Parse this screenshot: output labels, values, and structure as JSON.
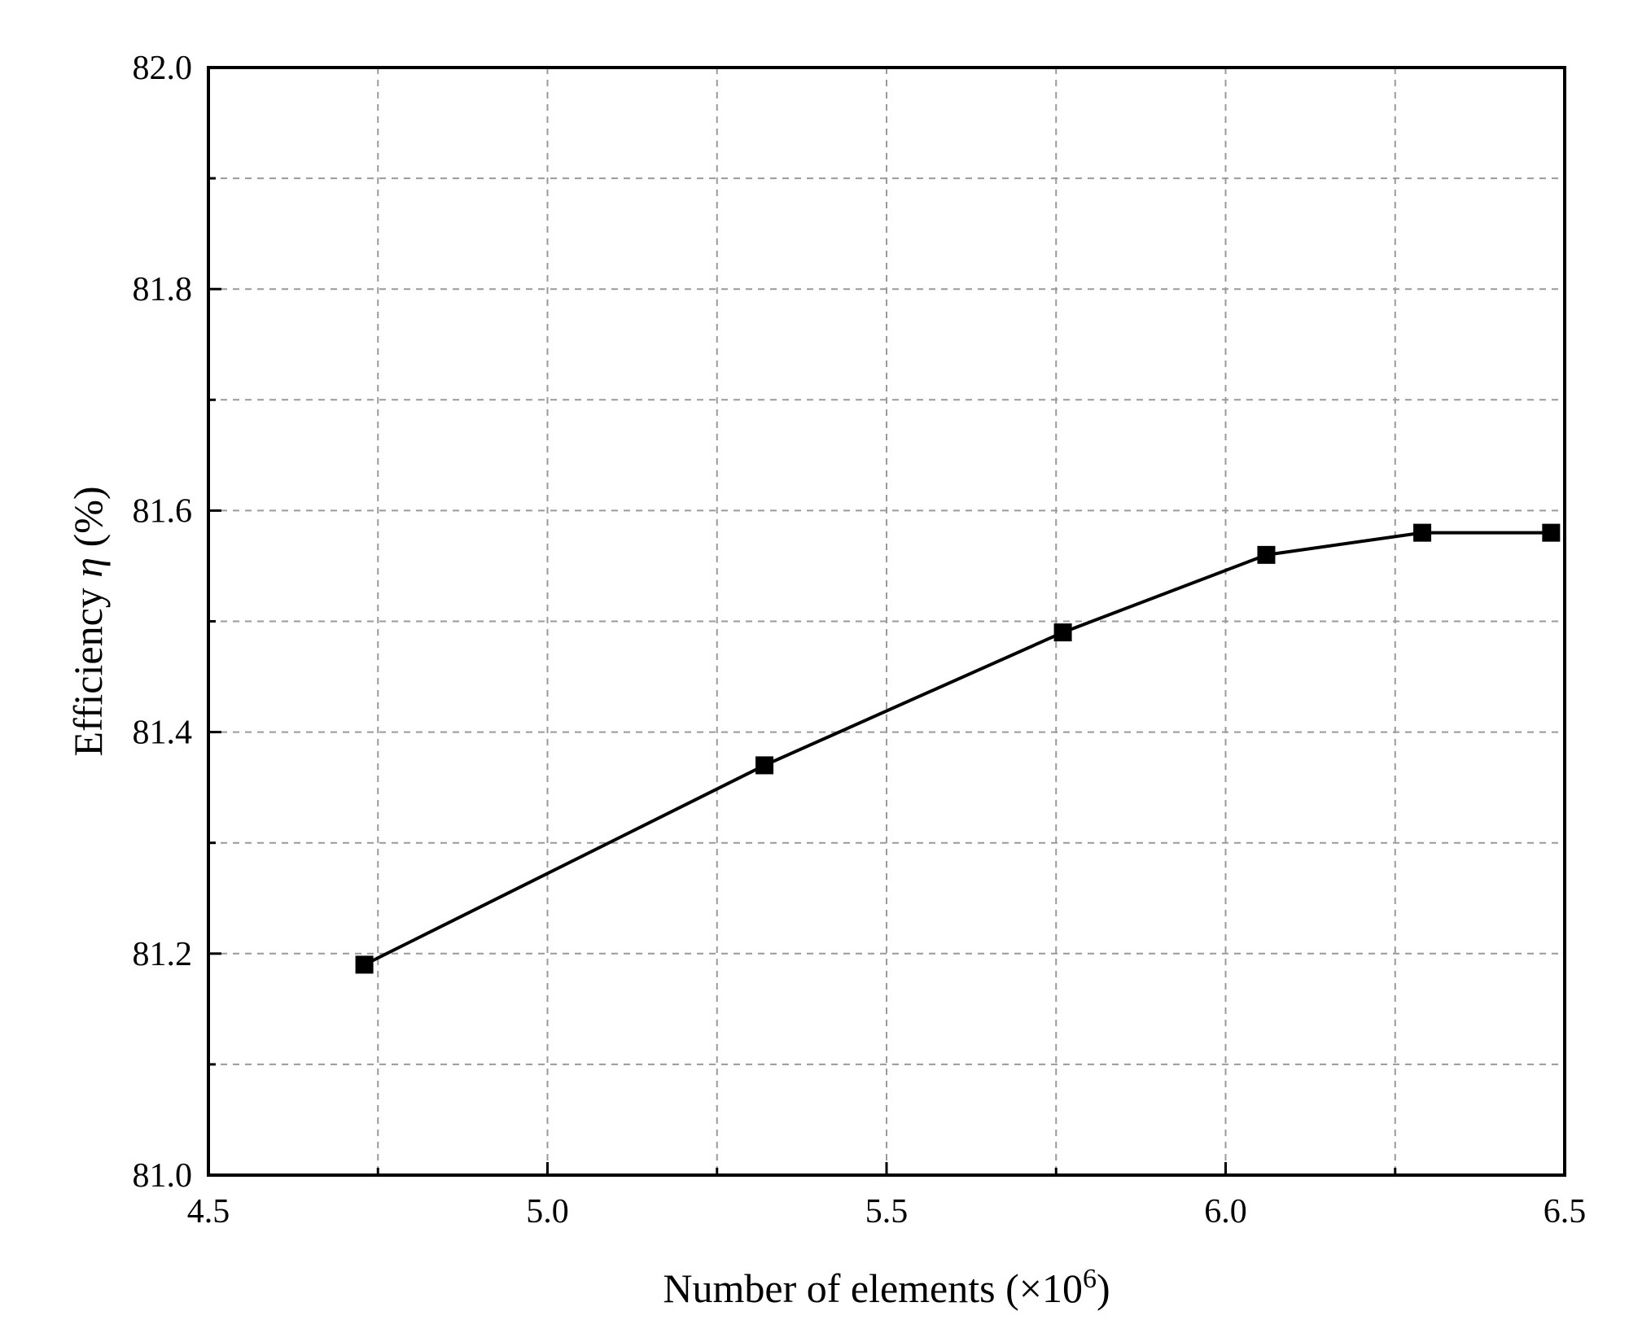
{
  "chart_data": {
    "type": "line",
    "title": "",
    "xlabel": {
      "prefix": "Number of elements (×10",
      "sup": "6",
      "suffix": ")"
    },
    "ylabel": {
      "prefix": "Efficiency ",
      "symbol": "η",
      "suffix": " (%)"
    },
    "xlim": [
      4.5,
      6.5
    ],
    "ylim": [
      81.0,
      82.0
    ],
    "x_ticks": [
      4.5,
      5.0,
      5.5,
      6.0,
      6.5
    ],
    "x_tick_labels": [
      "4.5",
      "5.0",
      "5.5",
      "6.0",
      "6.5"
    ],
    "x_minor_ticks": [
      4.75,
      5.25,
      5.75,
      6.25
    ],
    "y_ticks": [
      81.0,
      81.2,
      81.4,
      81.6,
      81.8,
      82.0
    ],
    "y_tick_labels": [
      "81.0",
      "81.2",
      "81.4",
      "81.6",
      "81.8",
      "82.0"
    ],
    "y_minor_ticks": [
      81.1,
      81.3,
      81.5,
      81.7,
      81.9
    ],
    "grid": true,
    "legend": "none",
    "series": [
      {
        "x": [
          4.73,
          5.32,
          5.76,
          6.06,
          6.29,
          6.48
        ],
        "y": [
          81.19,
          81.37,
          81.49,
          81.56,
          81.58,
          81.58
        ],
        "marker": "square",
        "color": "#000000"
      }
    ]
  }
}
